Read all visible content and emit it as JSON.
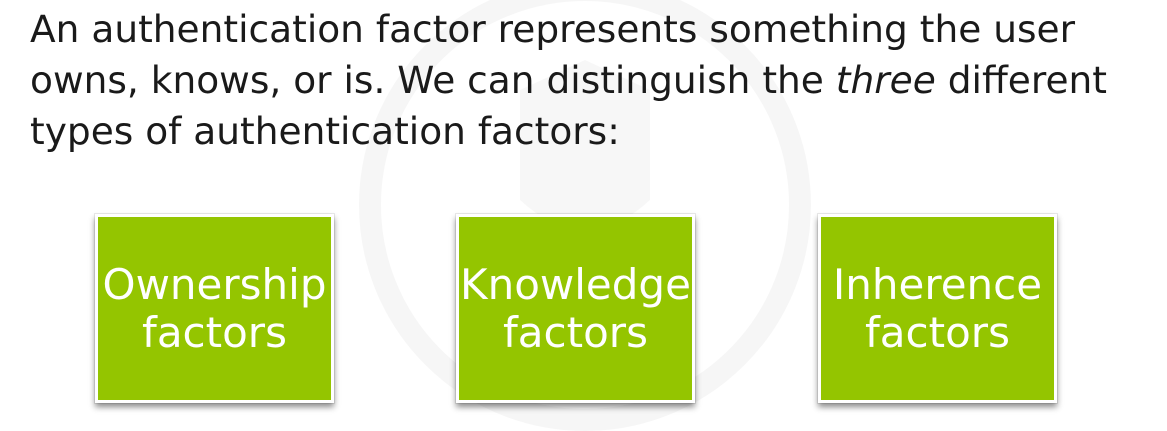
{
  "intro": {
    "part1": "An authentication factor represents something the user owns, knows, or is. We can distinguish the ",
    "emphasis": "three",
    "part2": " different types of authentication factors:"
  },
  "factors": [
    {
      "line1": "Ownership",
      "line2": "factors"
    },
    {
      "line1": "Knowledge",
      "line2": "factors"
    },
    {
      "line1": "Inherence",
      "line2": "factors"
    }
  ],
  "colors": {
    "box_fill": "#94c500",
    "text": "#1a1a1a",
    "box_text": "#ffffff"
  }
}
